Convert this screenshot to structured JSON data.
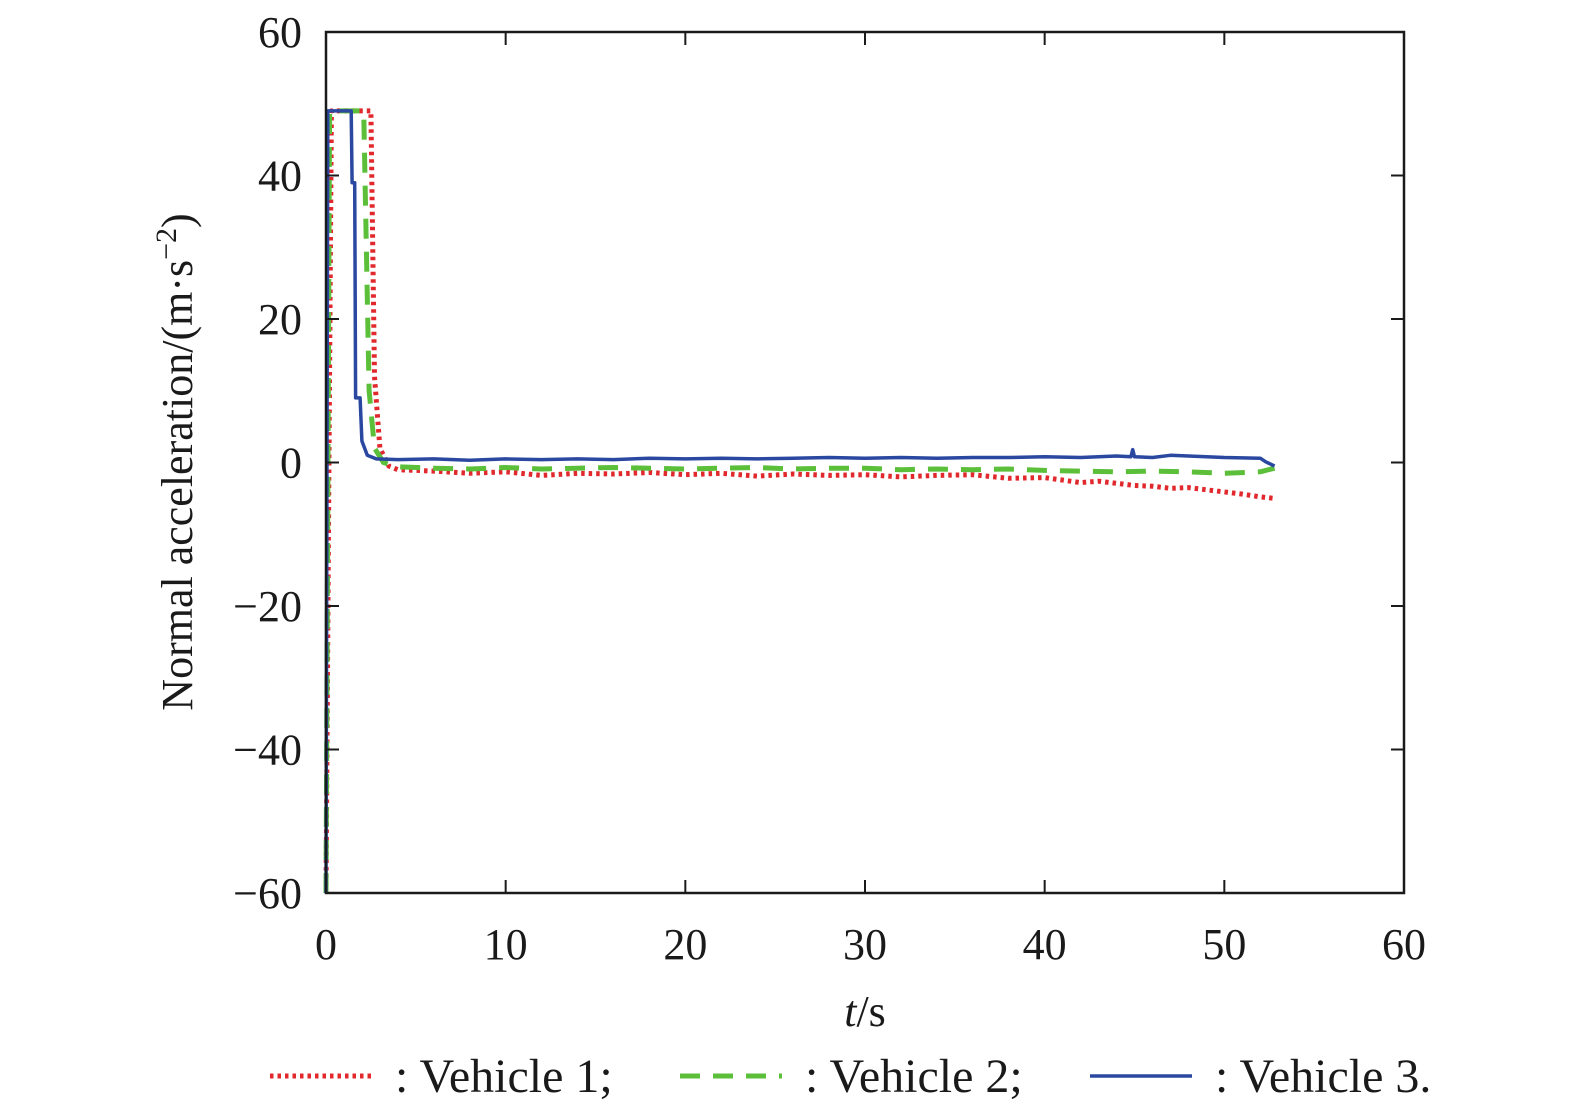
{
  "chart_data": {
    "type": "line",
    "title": "",
    "xlabel_italic": "t",
    "xlabel_unit": "/s",
    "ylabel": "Normal acceleration/(m·s",
    "ylabel_sup": "−2",
    "ylabel_close": ")",
    "xlim": [
      0,
      60
    ],
    "ylim": [
      -60,
      60
    ],
    "xticks": [
      0,
      10,
      20,
      30,
      40,
      50,
      60
    ],
    "yticks": [
      -60,
      -40,
      -20,
      0,
      20,
      40,
      60
    ],
    "xtick_labels": [
      "0",
      "10",
      "20",
      "30",
      "40",
      "50",
      "60"
    ],
    "ytick_labels": [
      "−60",
      "−40",
      "−20",
      "0",
      "20",
      "40",
      "60"
    ],
    "grid": false,
    "legend_position": "bottom",
    "series": [
      {
        "name": "Vehicle 1",
        "legend_label": ": Vehicle 1;",
        "color": "#e0282d",
        "style": "dotted",
        "points": [
          [
            0,
            -60
          ],
          [
            0.3,
            49
          ],
          [
            2.5,
            49
          ],
          [
            2.7,
            12
          ],
          [
            3.0,
            2
          ],
          [
            3.5,
            -0.5
          ],
          [
            4,
            -1
          ],
          [
            6,
            -1.2
          ],
          [
            8,
            -1.5
          ],
          [
            10,
            -1.3
          ],
          [
            12,
            -1.8
          ],
          [
            14,
            -1.5
          ],
          [
            16,
            -1.6
          ],
          [
            18,
            -1.4
          ],
          [
            20,
            -1.7
          ],
          [
            22,
            -1.5
          ],
          [
            24,
            -1.9
          ],
          [
            26,
            -1.6
          ],
          [
            28,
            -1.8
          ],
          [
            30,
            -1.7
          ],
          [
            32,
            -2
          ],
          [
            34,
            -1.8
          ],
          [
            36,
            -1.7
          ],
          [
            38,
            -2.2
          ],
          [
            40,
            -2.1
          ],
          [
            42,
            -2.8
          ],
          [
            43,
            -2.6
          ],
          [
            44,
            -2.9
          ],
          [
            45,
            -3.2
          ],
          [
            46,
            -3.3
          ],
          [
            47,
            -3.6
          ],
          [
            48,
            -3.5
          ],
          [
            49,
            -3.8
          ],
          [
            50,
            -4.1
          ],
          [
            51,
            -4.4
          ],
          [
            52,
            -4.8
          ],
          [
            52.8,
            -5
          ]
        ]
      },
      {
        "name": "Vehicle 2",
        "legend_label": ": Vehicle 2;",
        "color": "#5cbf3a",
        "style": "dashed",
        "points": [
          [
            0,
            -60
          ],
          [
            0.2,
            49
          ],
          [
            2.1,
            49
          ],
          [
            2.4,
            10
          ],
          [
            2.7,
            2
          ],
          [
            3.2,
            0
          ],
          [
            4,
            -0.6
          ],
          [
            6,
            -0.8
          ],
          [
            8,
            -0.9
          ],
          [
            10,
            -0.7
          ],
          [
            12,
            -0.9
          ],
          [
            14,
            -0.8
          ],
          [
            16,
            -0.7
          ],
          [
            18,
            -0.8
          ],
          [
            20,
            -0.9
          ],
          [
            22,
            -0.8
          ],
          [
            24,
            -0.7
          ],
          [
            26,
            -0.9
          ],
          [
            28,
            -0.8
          ],
          [
            30,
            -0.8
          ],
          [
            32,
            -1
          ],
          [
            34,
            -0.9
          ],
          [
            36,
            -1
          ],
          [
            38,
            -0.9
          ],
          [
            40,
            -1.1
          ],
          [
            42,
            -1.2
          ],
          [
            44,
            -1.3
          ],
          [
            46,
            -1.2
          ],
          [
            48,
            -1.3
          ],
          [
            50,
            -1.5
          ],
          [
            52,
            -1.3
          ],
          [
            52.8,
            -0.8
          ]
        ]
      },
      {
        "name": "Vehicle 3",
        "legend_label": ": Vehicle 3.",
        "color": "#2a48a0",
        "style": "solid",
        "points": [
          [
            0,
            -60
          ],
          [
            0.1,
            49
          ],
          [
            1.4,
            49
          ],
          [
            1.45,
            39
          ],
          [
            1.6,
            39
          ],
          [
            1.65,
            9
          ],
          [
            1.9,
            9
          ],
          [
            2.0,
            3
          ],
          [
            2.3,
            1
          ],
          [
            2.8,
            0.5
          ],
          [
            4,
            0.4
          ],
          [
            6,
            0.5
          ],
          [
            8,
            0.3
          ],
          [
            10,
            0.5
          ],
          [
            12,
            0.4
          ],
          [
            14,
            0.5
          ],
          [
            16,
            0.4
          ],
          [
            18,
            0.6
          ],
          [
            20,
            0.5
          ],
          [
            22,
            0.6
          ],
          [
            24,
            0.5
          ],
          [
            26,
            0.6
          ],
          [
            28,
            0.7
          ],
          [
            30,
            0.6
          ],
          [
            32,
            0.7
          ],
          [
            34,
            0.6
          ],
          [
            36,
            0.7
          ],
          [
            38,
            0.7
          ],
          [
            40,
            0.8
          ],
          [
            42,
            0.7
          ],
          [
            44,
            0.9
          ],
          [
            44.8,
            0.8
          ],
          [
            44.9,
            1.8
          ],
          [
            45.0,
            0.8
          ],
          [
            46,
            0.7
          ],
          [
            47,
            1.0
          ],
          [
            48,
            0.9
          ],
          [
            50,
            0.7
          ],
          [
            52,
            0.6
          ],
          [
            52.3,
            0.1
          ],
          [
            52.8,
            -0.5
          ]
        ]
      }
    ]
  }
}
